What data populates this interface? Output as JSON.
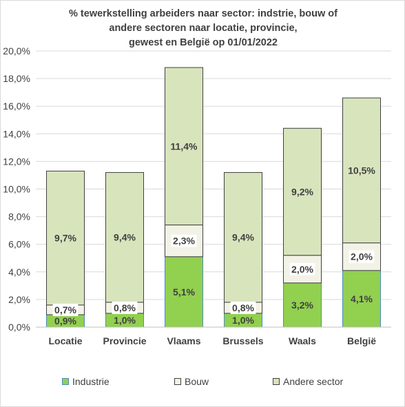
{
  "chart_data": {
    "type": "bar",
    "stacked": true,
    "title_lines": [
      "% tewerkstelling arbeiders naar sector: indstrie, bouw of",
      "andere sectoren naar locatie, provincie,",
      "gewest en België op 01/01/2022"
    ],
    "categories": [
      "Locatie",
      "Provincie",
      "Vlaams",
      "Brussels",
      "Waals",
      "België"
    ],
    "series": [
      {
        "name": "Industrie",
        "values": [
          0.9,
          1.0,
          5.1,
          1.0,
          3.2,
          4.1
        ],
        "labels": [
          "0,9%",
          "1,0%",
          "5,1%",
          "1,0%",
          "3,2%",
          "4,1%"
        ],
        "color": "#92d050",
        "border": "#4e8cbf"
      },
      {
        "name": "Bouw",
        "values": [
          0.7,
          0.8,
          2.3,
          0.8,
          2.0,
          2.0
        ],
        "labels": [
          "0,7%",
          "0,8%",
          "2,3%",
          "0,8%",
          "2,0%",
          "2,0%"
        ],
        "color": "#f2f2e6",
        "border": "#404040"
      },
      {
        "name": "Andere sector",
        "values": [
          9.7,
          9.4,
          11.4,
          9.4,
          9.2,
          10.5
        ],
        "labels": [
          "9,7%",
          "9,4%",
          "11,4%",
          "9,4%",
          "9,2%",
          "10,5%"
        ],
        "color": "#d8e4bc",
        "border": "#404040"
      }
    ],
    "y_ticks": [
      "0,0%",
      "2,0%",
      "4,0%",
      "6,0%",
      "8,0%",
      "10,0%",
      "12,0%",
      "14,0%",
      "16,0%",
      "18,0%",
      "20,0%"
    ],
    "ylim": [
      0,
      20
    ],
    "ytick_step": 2,
    "grid": true,
    "grid_color": "#d9d9d9",
    "legend_position": "bottom",
    "xlabel": "",
    "ylabel": ""
  }
}
